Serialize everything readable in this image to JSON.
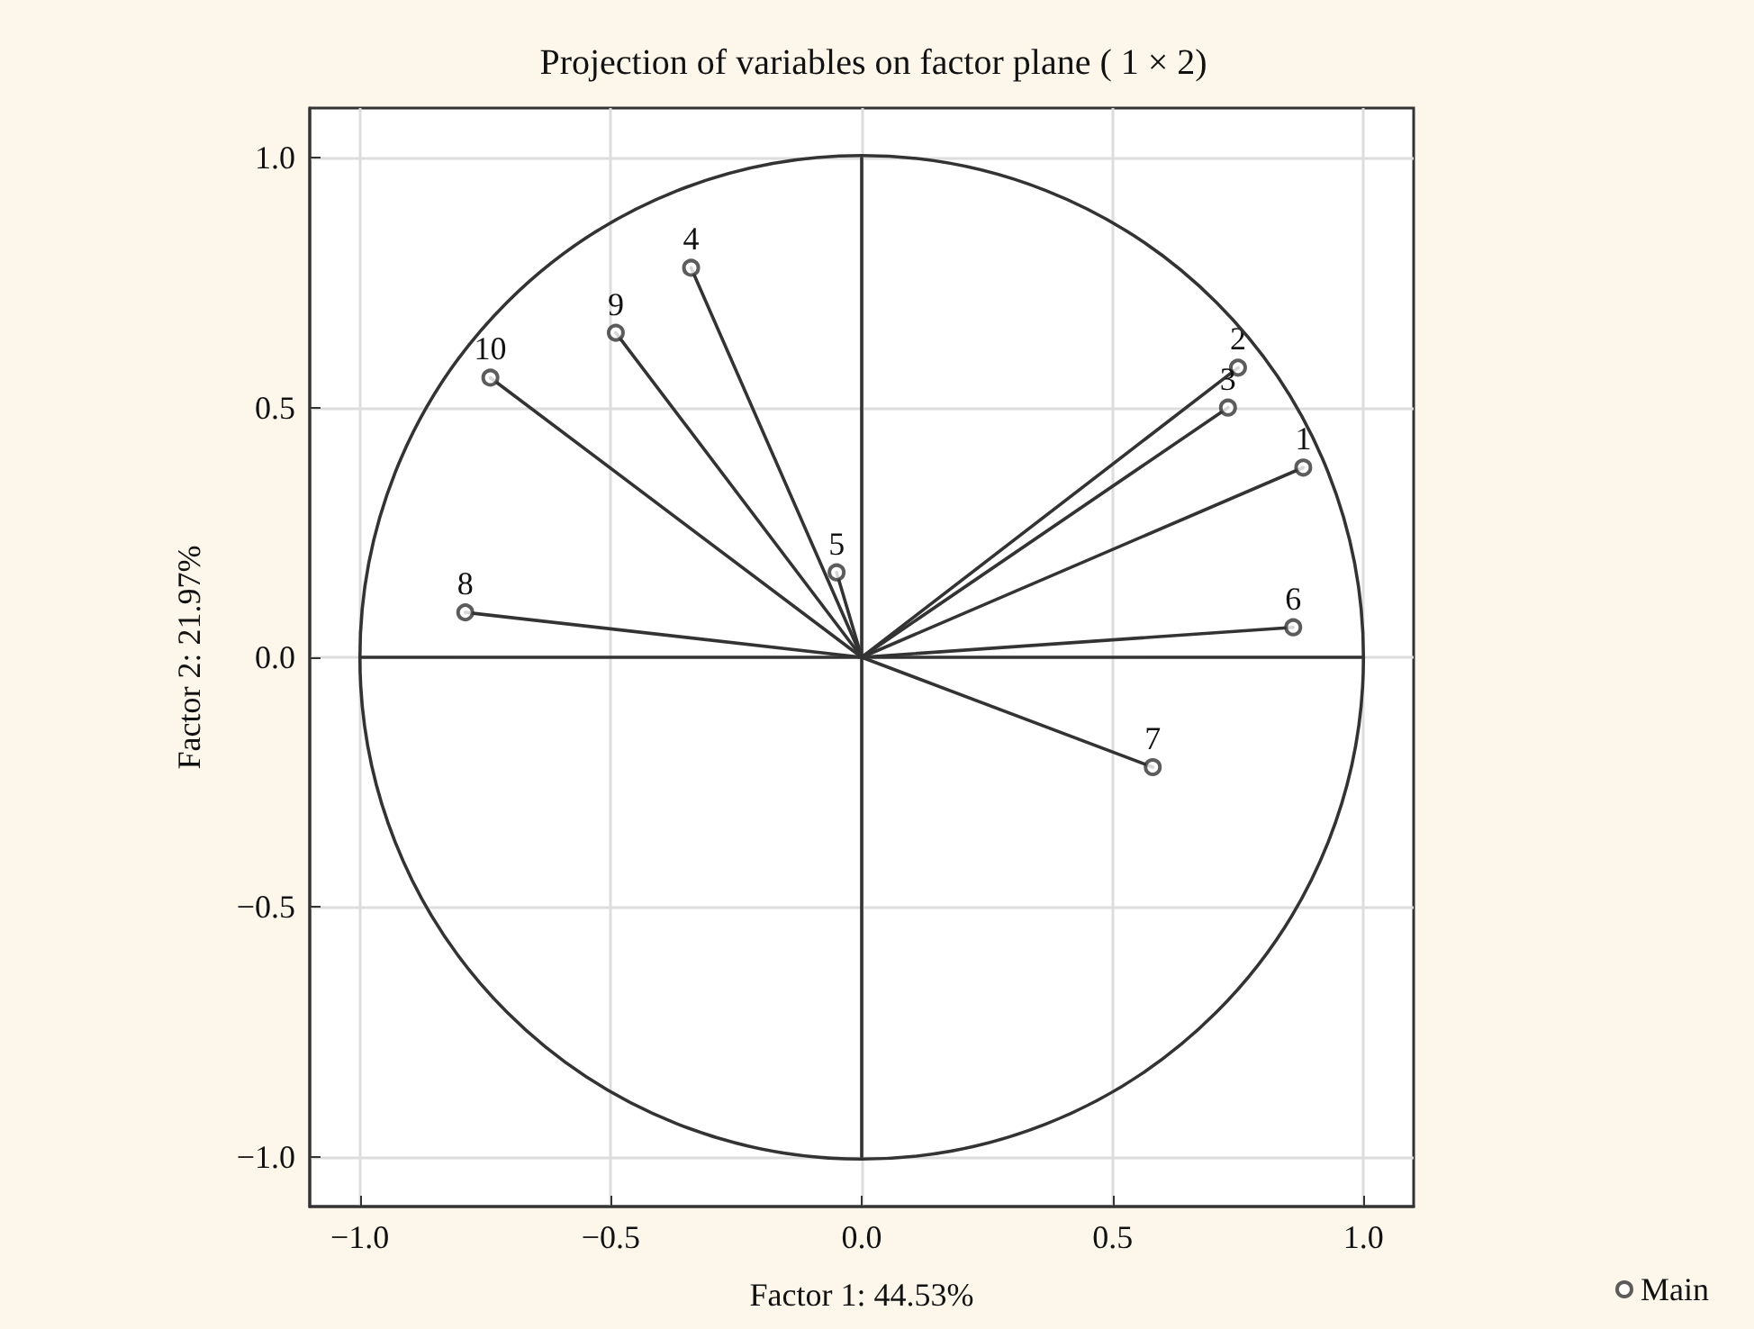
{
  "chart_data": {
    "type": "scatter",
    "title": "Projection of variables on factor plane ( 1 × 2)",
    "xlabel": "Factor 1: 44.53%",
    "ylabel": "Factor 2: 21.97%",
    "xlim": [
      -1.1,
      1.1
    ],
    "ylim": [
      -1.1,
      1.1
    ],
    "xticks": [
      {
        "value": -1,
        "label": "−1.0"
      },
      {
        "value": -0.5,
        "label": "−0.5"
      },
      {
        "value": 0,
        "label": "0.0"
      },
      {
        "value": 0.5,
        "label": "0.5"
      },
      {
        "value": 1,
        "label": "1.0"
      }
    ],
    "yticks": [
      {
        "value": -1,
        "label": "−1.0"
      },
      {
        "value": -0.5,
        "label": "−0.5"
      },
      {
        "value": 0,
        "label": "0.0"
      },
      {
        "value": 0.5,
        "label": "0.5"
      },
      {
        "value": 1,
        "label": "1.0"
      }
    ],
    "grid": true,
    "legend": "bottom right",
    "annotations": [
      {
        "text": "1",
        "x": 0.88,
        "y": 0.38
      },
      {
        "text": "2",
        "x": 0.75,
        "y": 0.58
      },
      {
        "text": "3",
        "x": 0.73,
        "y": 0.5
      },
      {
        "text": "4",
        "x": -0.34,
        "y": 0.78
      },
      {
        "text": "5",
        "x": -0.05,
        "y": 0.17
      },
      {
        "text": "6",
        "x": 0.86,
        "y": 0.06
      },
      {
        "text": "7",
        "x": 0.58,
        "y": -0.22
      },
      {
        "text": "8",
        "x": -0.79,
        "y": 0.09
      },
      {
        "text": "9",
        "x": -0.49,
        "y": 0.65
      },
      {
        "text": "10",
        "x": -0.74,
        "y": 0.56
      }
    ],
    "series": [
      {
        "type": "line",
        "color": "#333333",
        "x": [
          -1,
          1
        ],
        "values": [
          0,
          0
        ]
      },
      {
        "type": "line",
        "color": "#333333",
        "x": [
          0,
          0
        ],
        "values": [
          -1,
          1
        ]
      },
      {
        "type": "line",
        "color": "#333333",
        "x": [
          0,
          0.88
        ],
        "values": [
          0,
          0.38
        ]
      },
      {
        "type": "line",
        "color": "#333333",
        "x": [
          0,
          0.75
        ],
        "values": [
          0,
          0.58
        ]
      },
      {
        "type": "line",
        "color": "#333333",
        "x": [
          0,
          0.73
        ],
        "values": [
          0,
          0.5
        ]
      },
      {
        "type": "line",
        "color": "#333333",
        "x": [
          0,
          -0.34
        ],
        "values": [
          0,
          0.78
        ]
      },
      {
        "type": "line",
        "color": "#333333",
        "x": [
          0,
          -0.05
        ],
        "values": [
          0,
          0.17
        ]
      },
      {
        "type": "line",
        "color": "#333333",
        "x": [
          0,
          0.86
        ],
        "values": [
          0,
          0.06
        ]
      },
      {
        "type": "line",
        "color": "#333333",
        "x": [
          0,
          0.58
        ],
        "values": [
          0,
          -0.22
        ]
      },
      {
        "type": "line",
        "color": "#333333",
        "x": [
          0,
          -0.79
        ],
        "values": [
          0,
          0.09
        ]
      },
      {
        "type": "line",
        "color": "#333333",
        "x": [
          0,
          -0.49
        ],
        "values": [
          0,
          0.65
        ]
      },
      {
        "type": "line",
        "color": "#333333",
        "x": [
          0,
          -0.74
        ],
        "values": [
          0,
          0.56
        ]
      },
      {
        "name": "Main",
        "marker": "circle",
        "color": "#333333",
        "x": [
          0.88,
          0.75,
          0.73,
          -0.34,
          -0.05,
          0.86,
          0.58,
          -0.79,
          -0.49,
          -0.74
        ],
        "values": [
          0.38,
          0.58,
          0.5,
          0.78,
          0.17,
          0.06,
          -0.22,
          0.09,
          0.65,
          0.56
        ]
      }
    ]
  }
}
